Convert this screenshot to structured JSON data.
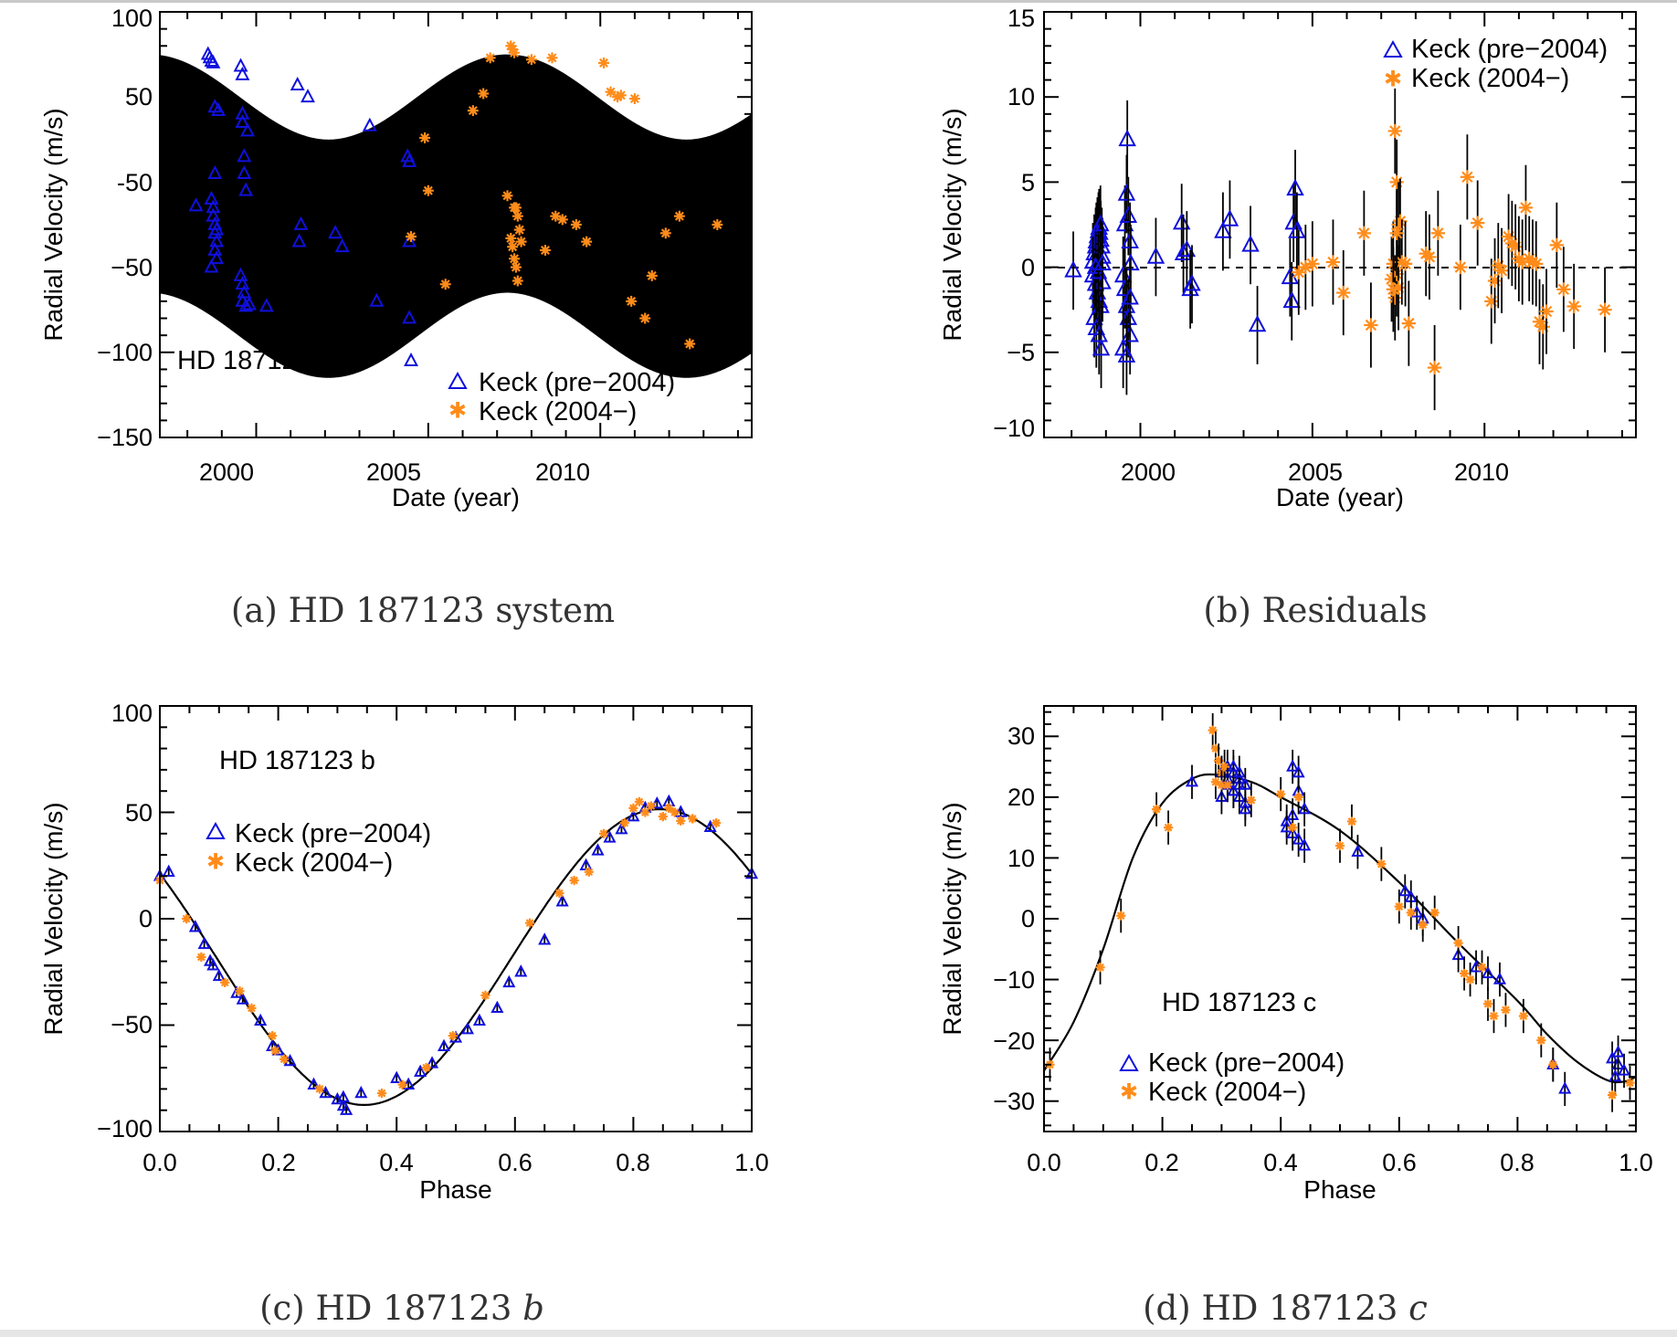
{
  "colors": {
    "pre": "#1010dd",
    "post": "#ff8c1a",
    "model": "#000000"
  },
  "legend": {
    "pre": "Keck (pre−2004)",
    "post": "Keck (2004−)"
  },
  "chart_data": [
    {
      "id": "a",
      "type": "scatter",
      "caption_label": "(a)",
      "caption_text": "HD 187123 system",
      "annotation": "HD 187123",
      "xlabel": "Date (year)",
      "ylabel": "Radial Velocity (m/s)",
      "xlim": [
        1997.2,
        2014.4
      ],
      "ylim": [
        -150,
        100
      ],
      "xticks": [
        2000,
        2005,
        2010
      ],
      "yticks": [
        -150,
        -100,
        -50,
        0,
        50,
        100
      ],
      "model": {
        "type": "two-planet Keplerian",
        "P_b_days": 3.097,
        "K_b": 70,
        "P_c_years": 10.4,
        "K_c": 25,
        "offset": -20,
        "phase_c_years": 1996.9
      },
      "series": [
        {
          "name": "Keck (pre−2004)",
          "marker": "triangle",
          "x": [
            1998.6,
            1998.65,
            1998.7,
            1998.75,
            1998.8,
            1998.9,
            1998.7,
            1998.75,
            1998.8,
            1998.8,
            1998.85,
            1998.85,
            1998.7,
            1998.8,
            1998.75,
            1998.8,
            1998.85,
            1998.25,
            1999.55,
            1999.6,
            1999.6,
            1999.6,
            1999.65,
            1999.65,
            1999.7,
            1999.55,
            1999.6,
            1999.65,
            1999.6,
            1999.7,
            1999.8,
            1999.75,
            2000.3,
            2001.2,
            2001.3,
            2001.5,
            2002.3,
            2001.25,
            2002.5,
            2003.3,
            2003.5,
            2004.4,
            2004.45,
            2004.45,
            2004.5,
            2004.45
          ],
          "y": [
            75,
            73,
            71,
            70,
            44,
            42,
            -10,
            -20,
            -25,
            -30,
            -35,
            -45,
            -50,
            5,
            -15,
            -40,
            -28,
            -14,
            68,
            63,
            40,
            35,
            15,
            5,
            -5,
            -55,
            -60,
            -65,
            -70,
            -73,
            -72,
            30,
            -73,
            57,
            -25,
            50,
            -30,
            -35,
            -38,
            33,
            -70,
            15,
            -35,
            -80,
            -105,
            12
          ]
        },
        {
          "name": "Keck (2004−)",
          "marker": "star",
          "x": [
            2004.9,
            2005.5,
            2006.3,
            2006.6,
            2006.8,
            2007.3,
            2007.4,
            2007.45,
            2007.5,
            2007.55,
            2007.6,
            2007.65,
            2007.7,
            2007.4,
            2007.45,
            2007.5,
            2007.55,
            2007.6,
            2007.5,
            2008.0,
            2008.4,
            2008.6,
            2008.9,
            2009.3,
            2009.6,
            2010.1,
            2010.3,
            2010.6,
            2010.9,
            2011.0,
            2011.3,
            2011.5,
            2011.9,
            2012.3,
            2012.6,
            2013.4,
            2004.5,
            2005.0,
            2008.7,
            2010.5
          ],
          "y": [
            26,
            -60,
            42,
            52,
            73,
            -8,
            80,
            78,
            76,
            -15,
            -20,
            -28,
            -35,
            -33,
            -38,
            -45,
            -50,
            -58,
            -15,
            72,
            -40,
            73,
            -22,
            -25,
            -35,
            70,
            53,
            51,
            -70,
            49,
            -80,
            -55,
            -30,
            -20,
            -95,
            -25,
            -32,
            -5,
            -20,
            50
          ]
        }
      ]
    },
    {
      "id": "b",
      "type": "scatter",
      "caption_label": "(b)",
      "caption_text": "Residuals",
      "xlabel": "Date (year)",
      "ylabel": "Radial Velocity (m/s)",
      "xlim": [
        1997.2,
        2014.4
      ],
      "ylim": [
        -10,
        15
      ],
      "xticks": [
        2000,
        2005,
        2010
      ],
      "yticks": [
        -10,
        -5,
        0,
        5,
        10,
        15
      ],
      "zero_line": true,
      "series": [
        {
          "name": "Keck (pre−2004)",
          "marker": "triangle",
          "err": 2.3,
          "x": [
            1998.05,
            1998.62,
            1998.66,
            1998.7,
            1998.72,
            1998.75,
            1998.78,
            1998.8,
            1998.82,
            1998.85,
            1998.88,
            1998.9,
            1998.62,
            1998.7,
            1998.75,
            1998.8,
            1998.85,
            1998.9,
            1998.66,
            1998.72,
            1998.8,
            1998.86,
            1998.7,
            1998.78,
            1998.84,
            1998.9,
            1999.5,
            1999.55,
            1999.6,
            1999.62,
            1999.65,
            1999.7,
            1999.72,
            1999.55,
            1999.6,
            1999.65,
            1999.7,
            1999.5,
            1999.6,
            1999.7,
            2000.45,
            2001.2,
            2001.25,
            2001.35,
            2001.45,
            2001.5,
            2002.4,
            2002.6,
            2003.2,
            2003.4,
            2004.35,
            2004.45,
            2004.5,
            2004.55,
            2004.4
          ],
          "y": [
            -0.2,
            0.3,
            0.8,
            1.2,
            1.5,
            1.8,
            2.1,
            2.3,
            2.0,
            1.6,
            1.2,
            0.6,
            -0.5,
            -1.0,
            -1.5,
            -2.0,
            -2.3,
            -0.9,
            -3.0,
            -3.6,
            -4.0,
            -4.8,
            0.0,
            -0.3,
            2.5,
            0.2,
            -0.5,
            2.5,
            4.3,
            7.5,
            3.0,
            1.5,
            0.2,
            -1.3,
            -2.3,
            -3.0,
            -4.0,
            -4.8,
            -5.2,
            -1.8,
            0.6,
            2.6,
            0.8,
            1.0,
            -1.3,
            -1.0,
            2.1,
            2.8,
            1.3,
            -3.4,
            -0.6,
            2.6,
            4.6,
            2.1,
            -2.0
          ]
        },
        {
          "name": "Keck (2004−)",
          "marker": "star",
          "err": 2.5,
          "x": [
            2004.6,
            2004.8,
            2005.0,
            2005.6,
            2005.9,
            2006.5,
            2006.7,
            2007.3,
            2007.35,
            2007.4,
            2007.45,
            2007.5,
            2007.55,
            2007.4,
            2007.45,
            2007.5,
            2007.6,
            2007.35,
            2007.45,
            2007.7,
            2007.8,
            2008.3,
            2008.4,
            2008.55,
            2008.65,
            2009.3,
            2009.5,
            2009.8,
            2010.2,
            2010.3,
            2010.4,
            2010.5,
            2010.7,
            2010.8,
            2010.9,
            2011.0,
            2011.1,
            2011.2,
            2011.3,
            2011.4,
            2011.5,
            2011.6,
            2011.7,
            2011.8,
            2012.1,
            2012.3,
            2012.6,
            2013.5
          ],
          "y": [
            -0.3,
            0.0,
            0.2,
            0.3,
            -1.5,
            2.0,
            -3.4,
            -0.7,
            0.2,
            8.0,
            5.0,
            2.5,
            2.7,
            -1.8,
            -0.4,
            -1.2,
            0.3,
            -1.3,
            2.0,
            0.2,
            -3.3,
            0.8,
            0.6,
            -5.9,
            2.0,
            0.0,
            5.3,
            2.6,
            -2.0,
            -0.8,
            0.1,
            -0.2,
            1.8,
            1.4,
            1.2,
            0.5,
            0.3,
            3.5,
            0.5,
            0.3,
            0.2,
            -3.2,
            -3.5,
            -2.6,
            1.3,
            -1.3,
            -2.3,
            -2.5
          ]
        }
      ]
    },
    {
      "id": "c",
      "type": "scatter",
      "caption_label": "(c)",
      "caption_text": "HD 187123",
      "caption_italic": "b",
      "annotation": "HD 187123 b",
      "xlabel": "Phase",
      "ylabel": "Radial Velocity (m/s)",
      "xlim": [
        0.0,
        1.0
      ],
      "ylim": [
        -100,
        100
      ],
      "xticks": [
        0.0,
        0.2,
        0.4,
        0.6,
        0.8,
        1.0
      ],
      "xtick_labels": [
        "0.0",
        "0.2",
        "0.4",
        "0.6",
        "0.8",
        "1.0"
      ],
      "yticks": [
        -100,
        -50,
        0,
        50,
        100
      ],
      "model": {
        "type": "sinusoid",
        "K": 69.5,
        "offset": -18,
        "phase_of_maximum": 0.845
      },
      "series": [
        {
          "name": "Keck (pre−2004)",
          "marker": "triangle",
          "err": 2,
          "x": [
            0.0,
            0.015,
            0.06,
            0.075,
            0.085,
            0.09,
            0.1,
            0.13,
            0.14,
            0.17,
            0.19,
            0.2,
            0.22,
            0.26,
            0.28,
            0.31,
            0.315,
            0.31,
            0.34,
            0.4,
            0.42,
            0.44,
            0.46,
            0.48,
            0.5,
            0.52,
            0.54,
            0.57,
            0.59,
            0.61,
            0.65,
            0.68,
            0.72,
            0.74,
            0.76,
            0.78,
            0.8,
            0.82,
            0.84,
            0.86,
            0.88,
            0.93,
            1.0,
            0.3
          ],
          "y": [
            20,
            22,
            -4,
            -12,
            -20,
            -22,
            -27,
            -35,
            -38,
            -48,
            -60,
            -62,
            -67,
            -78,
            -82,
            -88,
            -90,
            -84,
            -82,
            -75,
            -78,
            -72,
            -68,
            -60,
            -56,
            -52,
            -48,
            -42,
            -30,
            -25,
            -10,
            8,
            25,
            32,
            38,
            42,
            48,
            52,
            54,
            55,
            50,
            43,
            21,
            -85
          ]
        },
        {
          "name": "Keck (2004−)",
          "marker": "star",
          "err": 2,
          "x": [
            0.0,
            0.045,
            0.07,
            0.11,
            0.135,
            0.155,
            0.19,
            0.195,
            0.21,
            0.27,
            0.375,
            0.41,
            0.45,
            0.495,
            0.55,
            0.625,
            0.675,
            0.7,
            0.725,
            0.75,
            0.785,
            0.8,
            0.81,
            0.82,
            0.83,
            0.85,
            0.86,
            0.87,
            0.88,
            0.9,
            0.94
          ],
          "y": [
            18,
            0,
            -18,
            -30,
            -34,
            -42,
            -55,
            -62,
            -66,
            -80,
            -82,
            -78,
            -70,
            -55,
            -36,
            -2,
            12,
            18,
            22,
            40,
            45,
            52,
            55,
            50,
            53,
            48,
            52,
            50,
            46,
            47,
            45
          ]
        }
      ]
    },
    {
      "id": "d",
      "type": "scatter",
      "caption_label": "(d)",
      "caption_text": "HD 187123",
      "caption_italic": "c",
      "annotation": "HD 187123 c",
      "xlabel": "Phase",
      "ylabel": "Radial Velocity (m/s)",
      "xlim": [
        0.0,
        1.0
      ],
      "ylim": [
        -35,
        35
      ],
      "xticks": [
        0.0,
        0.2,
        0.4,
        0.6,
        0.8,
        1.0
      ],
      "xtick_labels": [
        "0.0",
        "0.2",
        "0.4",
        "0.6",
        "0.8",
        "1.0"
      ],
      "yticks": [
        -30,
        -20,
        -10,
        0,
        10,
        20,
        30
      ],
      "model": {
        "type": "keplerian",
        "K": 25,
        "e": 0.25,
        "points": [
          [
            0.0,
            -25
          ],
          [
            0.05,
            -17
          ],
          [
            0.1,
            -5
          ],
          [
            0.15,
            10
          ],
          [
            0.2,
            19
          ],
          [
            0.25,
            23
          ],
          [
            0.29,
            23.7
          ],
          [
            0.35,
            22.5
          ],
          [
            0.4,
            20
          ],
          [
            0.5,
            14.5
          ],
          [
            0.6,
            6
          ],
          [
            0.7,
            -4
          ],
          [
            0.8,
            -13.5
          ],
          [
            0.85,
            -19
          ],
          [
            0.9,
            -23.5
          ],
          [
            0.95,
            -26.5
          ],
          [
            0.98,
            -26.8
          ],
          [
            1.0,
            -26
          ]
        ]
      },
      "series": [
        {
          "name": "Keck (pre−2004)",
          "marker": "triangle",
          "err": 2.8,
          "x": [
            0.25,
            0.3,
            0.31,
            0.32,
            0.33,
            0.31,
            0.32,
            0.33,
            0.34,
            0.31,
            0.32,
            0.33,
            0.34,
            0.3,
            0.32,
            0.33,
            0.34,
            0.41,
            0.42,
            0.43,
            0.42,
            0.43,
            0.44,
            0.41,
            0.42,
            0.43,
            0.44,
            0.53,
            0.61,
            0.62,
            0.63,
            0.64,
            0.7,
            0.73,
            0.75,
            0.77,
            0.96,
            0.97,
            0.965,
            0.98,
            0.97,
            0.86,
            0.88
          ],
          "y": [
            22.5,
            24,
            25,
            24,
            23,
            22,
            21,
            20,
            19,
            23,
            21,
            22,
            18,
            20,
            25,
            24,
            22,
            16,
            17,
            21,
            25,
            24,
            18,
            15,
            14,
            13,
            12,
            11,
            4.5,
            3.5,
            1,
            0,
            -6,
            -8,
            -9,
            -10,
            -23,
            -24,
            -26,
            -25,
            -22,
            -24,
            -28
          ]
        },
        {
          "name": "Keck (2004−)",
          "marker": "star",
          "err": 2.8,
          "x": [
            0.01,
            0.095,
            0.13,
            0.19,
            0.21,
            0.285,
            0.29,
            0.295,
            0.3,
            0.3,
            0.305,
            0.31,
            0.29,
            0.35,
            0.4,
            0.42,
            0.43,
            0.52,
            0.5,
            0.57,
            0.6,
            0.62,
            0.64,
            0.66,
            0.7,
            0.71,
            0.72,
            0.74,
            0.75,
            0.76,
            0.78,
            0.81,
            0.84,
            0.86,
            0.96,
            0.99
          ],
          "y": [
            -24,
            -8,
            0.5,
            18,
            15,
            31,
            28,
            26,
            24,
            22,
            25,
            22,
            22.5,
            19.5,
            20.5,
            15,
            20,
            16,
            12,
            9,
            2,
            1,
            -1,
            1,
            -4,
            -9,
            -10,
            -8,
            -14,
            -16,
            -15,
            -16,
            -20,
            -24,
            -29,
            -27
          ]
        }
      ]
    }
  ]
}
